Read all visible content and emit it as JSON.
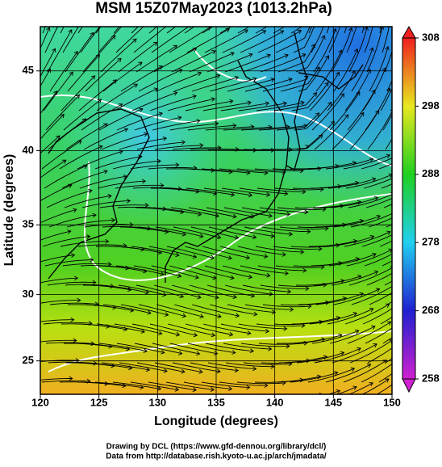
{
  "chart_data": {
    "type": "map",
    "title": "MSM 15Z07May2023 (1013.2hPa)",
    "x_label": "Longitude (degrees)",
    "y_label": "Latitude  (degrees)",
    "xlim": [
      120,
      150
    ],
    "xticks": [
      120,
      125,
      130,
      135,
      140,
      145,
      150
    ],
    "ylim": [
      22.4,
      47.6
    ],
    "yticks": [
      25,
      30,
      35,
      40,
      45
    ],
    "projection": "mercator",
    "grid": true,
    "colorbar": {
      "clim": [
        258,
        308
      ],
      "ticks": [
        258,
        268,
        278,
        288,
        298,
        308
      ],
      "colors": [
        "#d020d0",
        "#2020d0",
        "#20d0f0",
        "#20d020",
        "#e8e820",
        "#f02020"
      ]
    },
    "footer": [
      "Drawing by DCL (https://www.gfd-dennou.org/library/dcl/)",
      "Data from http://database.rish.kyoto-u.ac.jp/arch/jmadata/"
    ]
  }
}
